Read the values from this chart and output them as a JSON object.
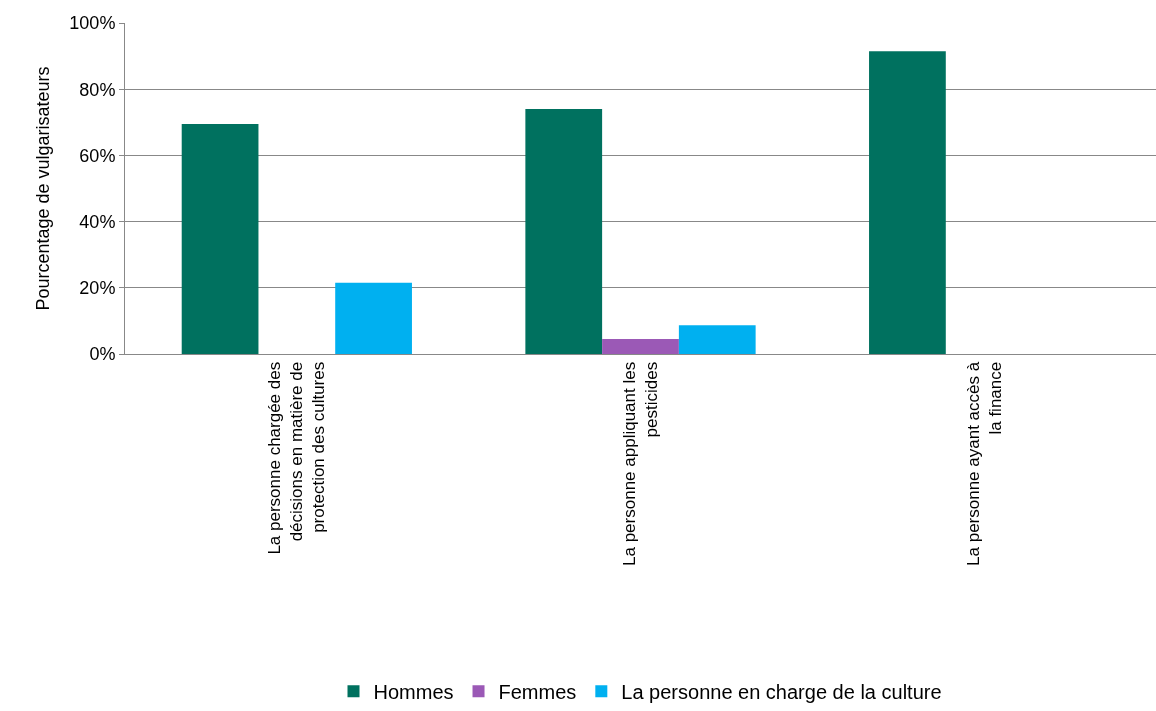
{
  "chart_data": {
    "type": "bar",
    "ylabel": "Pourcentage de vulgarisateurs",
    "categories": [
      "La personne chargée des décisions en matière de protection des cultures",
      "La personne appliquant les pesticides",
      "La personne ayant accès à la finance"
    ],
    "series": [
      {
        "name": "Hommes",
        "color": "#00715f",
        "values": [
          69.5,
          74,
          91.5
        ]
      },
      {
        "name": "Femmes",
        "color": "#9b59b6",
        "values": [
          0,
          4.5,
          0
        ]
      },
      {
        "name": "La personne en charge de la culture",
        "color": "#00b0f0",
        "values": [
          21.5,
          8.7,
          0
        ]
      }
    ],
    "ylim": [
      0,
      100
    ],
    "yticks": [
      {
        "value": 0,
        "label": "0%"
      },
      {
        "value": 20,
        "label": "20%"
      },
      {
        "value": 40,
        "label": "40%"
      },
      {
        "value": 60,
        "label": "60%"
      },
      {
        "value": 80,
        "label": "80%"
      },
      {
        "value": 100,
        "label": "100%"
      }
    ],
    "grid": "y",
    "legend": "bottom"
  }
}
